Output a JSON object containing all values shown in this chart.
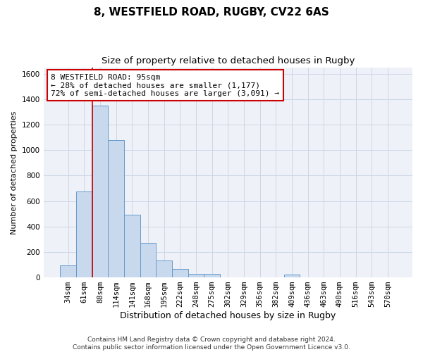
{
  "title1": "8, WESTFIELD ROAD, RUGBY, CV22 6AS",
  "title2": "Size of property relative to detached houses in Rugby",
  "xlabel": "Distribution of detached houses by size in Rugby",
  "ylabel": "Number of detached properties",
  "bar_color": "#c8d9ee",
  "bar_edge_color": "#6699cc",
  "categories": [
    "34sqm",
    "61sqm",
    "88sqm",
    "114sqm",
    "141sqm",
    "168sqm",
    "195sqm",
    "222sqm",
    "248sqm",
    "275sqm",
    "302sqm",
    "329sqm",
    "356sqm",
    "382sqm",
    "409sqm",
    "436sqm",
    "463sqm",
    "490sqm",
    "516sqm",
    "543sqm",
    "570sqm"
  ],
  "values": [
    95,
    675,
    1350,
    1080,
    490,
    270,
    135,
    65,
    30,
    30,
    0,
    0,
    0,
    0,
    20,
    0,
    0,
    0,
    0,
    0,
    0
  ],
  "ylim": [
    0,
    1650
  ],
  "yticks": [
    0,
    200,
    400,
    600,
    800,
    1000,
    1200,
    1400,
    1600
  ],
  "property_bin_index": 2,
  "annotation_text": "8 WESTFIELD ROAD: 95sqm\n← 28% of detached houses are smaller (1,177)\n72% of semi-detached houses are larger (3,091) →",
  "annotation_box_color": "#ffffff",
  "annotation_box_edge_color": "#cc0000",
  "red_line_color": "#cc0000",
  "grid_color": "#ccd6e8",
  "bg_color": "#eef2f8",
  "footnote": "Contains HM Land Registry data © Crown copyright and database right 2024.\nContains public sector information licensed under the Open Government Licence v3.0.",
  "title1_fontsize": 11,
  "title2_fontsize": 9.5,
  "xlabel_fontsize": 9,
  "ylabel_fontsize": 8,
  "tick_fontsize": 7.5,
  "annotation_fontsize": 8,
  "footnote_fontsize": 6.5
}
